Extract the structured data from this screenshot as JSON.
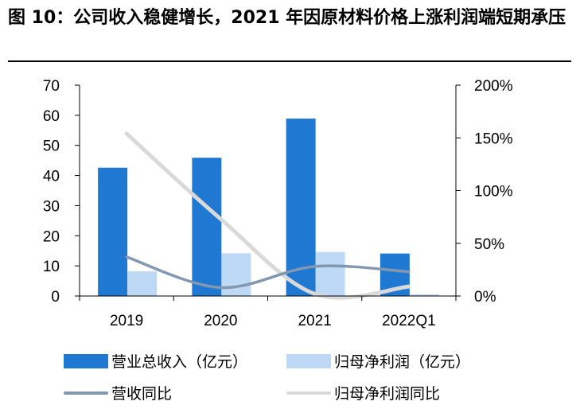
{
  "figure_title": "图 10：公司收入稳健增长，2021 年因原材料价格上涨利润端短期承压",
  "colors": {
    "revenue_bar": "#1F78D1",
    "profit_bar": "#BDD9F5",
    "revenue_yoy_line": "#8497B0",
    "profit_yoy_line": "#D9D9D9"
  },
  "chart_data": {
    "type": "bar",
    "title": "",
    "categories": [
      "2019",
      "2020",
      "2021",
      "2022Q1"
    ],
    "ylim": [
      0,
      70
    ],
    "y_ticks": [
      "0",
      "10",
      "20",
      "30",
      "40",
      "50",
      "60",
      "70"
    ],
    "y2lim": [
      0,
      200
    ],
    "y2_ticks": [
      "0%",
      "50%",
      "100%",
      "150%",
      "200%"
    ],
    "legend_position": "bottom",
    "grid": false,
    "series": [
      {
        "name": "营业总收入（亿元）",
        "type": "bar",
        "axis": "left",
        "values": [
          42.6,
          45.9,
          58.9,
          14.1
        ]
      },
      {
        "name": "归母净利润（亿元）",
        "type": "bar",
        "axis": "left",
        "values": [
          8.2,
          14.2,
          14.6,
          0.6
        ]
      },
      {
        "name": "营收同比",
        "type": "line",
        "axis": "right",
        "unit": "%",
        "values": [
          37,
          8,
          28,
          23
        ]
      },
      {
        "name": "归母净利润同比",
        "type": "line",
        "axis": "right",
        "unit": "%",
        "values": [
          154,
          73,
          2,
          9
        ]
      }
    ]
  }
}
